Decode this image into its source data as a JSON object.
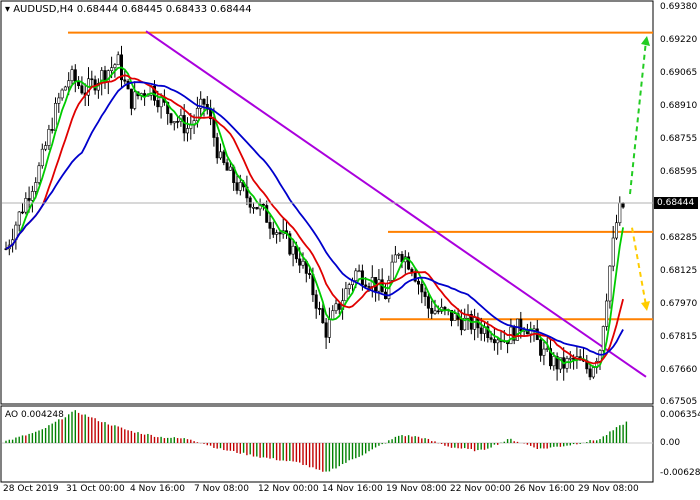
{
  "header": {
    "symbol": "AUDUSD,H4",
    "ohlc": "0.68444 0.68445 0.68433 0.68444"
  },
  "indicator": {
    "label": "AO 0.004248",
    "levels": [
      "0.006354",
      "0.00",
      "-0.006287"
    ]
  },
  "current_price": "0.68444",
  "chart_data": {
    "type": "candlestick",
    "instrument": "AUDUSD",
    "timeframe": "H4",
    "y_ticks": [
      "0.69380",
      "0.69220",
      "0.69065",
      "0.68910",
      "0.68755",
      "0.68595",
      "0.68285",
      "0.68125",
      "0.67970",
      "0.67815",
      "0.67660",
      "0.67505"
    ],
    "x_ticks": [
      "28 Oct 2019",
      "31 Oct 00:00",
      "4 Nov 16:00",
      "7 Nov 08:00",
      "12 Nov 00:00",
      "14 Nov 16:00",
      "19 Nov 08:00",
      "22 Nov 00:00",
      "26 Nov 16:00",
      "29 Nov 08:00"
    ],
    "ylim": [
      0.67505,
      0.6938
    ],
    "horizontal_levels": [
      0.69258,
      0.6831,
      0.67894
    ],
    "trendline": [
      [
        0.69265,
        "4 Nov"
      ],
      [
        0.6762,
        "29 Nov"
      ]
    ],
    "ma_fast_color": "#00cc00",
    "ma_mid_color": "#e00000",
    "ma_slow_color": "#0000cc",
    "level_color": "#ff8000",
    "trendline_color": "#aa00dd",
    "forecast_up_color": "#22cc22",
    "forecast_down_color": "#ffcc00",
    "ao_up_color": "#008000",
    "ao_down_color": "#c00000"
  }
}
